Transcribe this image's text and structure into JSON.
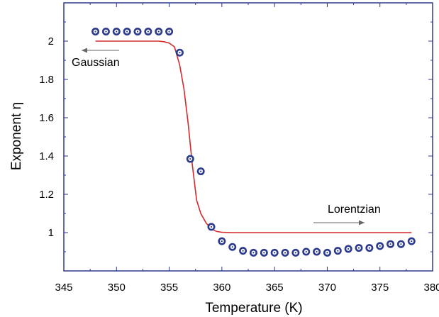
{
  "chart_data": {
    "type": "scatter",
    "xlabel": "Temperature (K)",
    "ylabel": "Exponent η",
    "xlim": [
      345,
      380
    ],
    "ylim": [
      0.8,
      2.2
    ],
    "xticks": [
      345,
      350,
      355,
      360,
      365,
      370,
      375,
      380
    ],
    "yticks": [
      1,
      1.2,
      1.4,
      1.6,
      1.8,
      2
    ],
    "xtick_labels": [
      "345",
      "350",
      "355",
      "360",
      "365",
      "370",
      "375",
      "380"
    ],
    "ytick_labels": [
      "1",
      "1.2",
      "1.4",
      "1.6",
      "1.8",
      "2"
    ],
    "grid": false,
    "frame_color": "#2b3a8c",
    "series": [
      {
        "kind": "markers",
        "color": "#2b3a8c",
        "points": [
          [
            348,
            2.05
          ],
          [
            349,
            2.05
          ],
          [
            350,
            2.05
          ],
          [
            351,
            2.05
          ],
          [
            352,
            2.05
          ],
          [
            353,
            2.05
          ],
          [
            354,
            2.05
          ],
          [
            355,
            2.05
          ],
          [
            356,
            1.94
          ],
          [
            357,
            1.385
          ],
          [
            358,
            1.32
          ],
          [
            359,
            1.03
          ],
          [
            360,
            0.955
          ],
          [
            361,
            0.925
          ],
          [
            362,
            0.905
          ],
          [
            363,
            0.895
          ],
          [
            364,
            0.895
          ],
          [
            365,
            0.895
          ],
          [
            366,
            0.895
          ],
          [
            367,
            0.895
          ],
          [
            368,
            0.9
          ],
          [
            369,
            0.9
          ],
          [
            370,
            0.895
          ],
          [
            371,
            0.905
          ],
          [
            372,
            0.915
          ],
          [
            373,
            0.92
          ],
          [
            374,
            0.92
          ],
          [
            375,
            0.93
          ],
          [
            376,
            0.94
          ],
          [
            377,
            0.94
          ],
          [
            378,
            0.955
          ]
        ]
      },
      {
        "kind": "fit-line",
        "color": "#d42a2a",
        "points": [
          [
            348,
            2.0
          ],
          [
            354,
            2.0
          ],
          [
            354.5,
            1.997
          ],
          [
            355,
            1.99
          ],
          [
            355.5,
            1.97
          ],
          [
            356,
            1.875
          ],
          [
            356.4,
            1.75
          ],
          [
            356.8,
            1.57
          ],
          [
            357.2,
            1.35
          ],
          [
            357.6,
            1.17
          ],
          [
            358,
            1.1
          ],
          [
            358.5,
            1.05
          ],
          [
            359,
            1.02
          ],
          [
            359.5,
            1.006
          ],
          [
            360,
            1.002
          ],
          [
            361,
            1.0
          ],
          [
            378,
            1.0
          ]
        ]
      }
    ],
    "annotations": [
      {
        "text": "Gaussian",
        "arrow": "left"
      },
      {
        "text": "Lorentzian",
        "arrow": "right"
      }
    ]
  }
}
